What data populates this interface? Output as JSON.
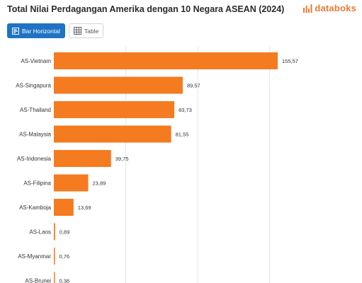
{
  "header": {
    "title": "Total Nilai Perdagangan Amerika dengan 10 Negara ASEAN (2024)",
    "brand": "databoks"
  },
  "toolbar": {
    "bar_label": "Bar Horizontal",
    "table_label": "Table",
    "bar_icon": "bar-chart-icon",
    "table_icon": "table-grid-icon"
  },
  "colors": {
    "bar": "#f47b20",
    "active_button": "#1e73c4",
    "grid": "#e3e6ea",
    "brand": "#ea7a36"
  },
  "chart_data": {
    "type": "bar",
    "orientation": "horizontal",
    "categories": [
      "AS-Vietnam",
      "AS-Singapura",
      "AS-Thailand",
      "AS-Malaysia",
      "AS-Indonesia",
      "AS-Filipina",
      "AS-Kamboja",
      "AS-Laos",
      "AS-Myanmar",
      "AS-Brunei"
    ],
    "values": [
      155.57,
      89.57,
      83.73,
      81.55,
      39.75,
      23.89,
      13.69,
      0.89,
      0.76,
      0.38
    ],
    "value_labels": [
      "155,57",
      "89,57",
      "83,73",
      "81,55",
      "39,75",
      "23,89",
      "13,69",
      "0,89",
      "0,76",
      "0,38"
    ],
    "xlim": [
      0,
      175
    ],
    "gridlines": [
      0,
      50,
      100,
      150
    ],
    "grid": true,
    "legend": false
  }
}
